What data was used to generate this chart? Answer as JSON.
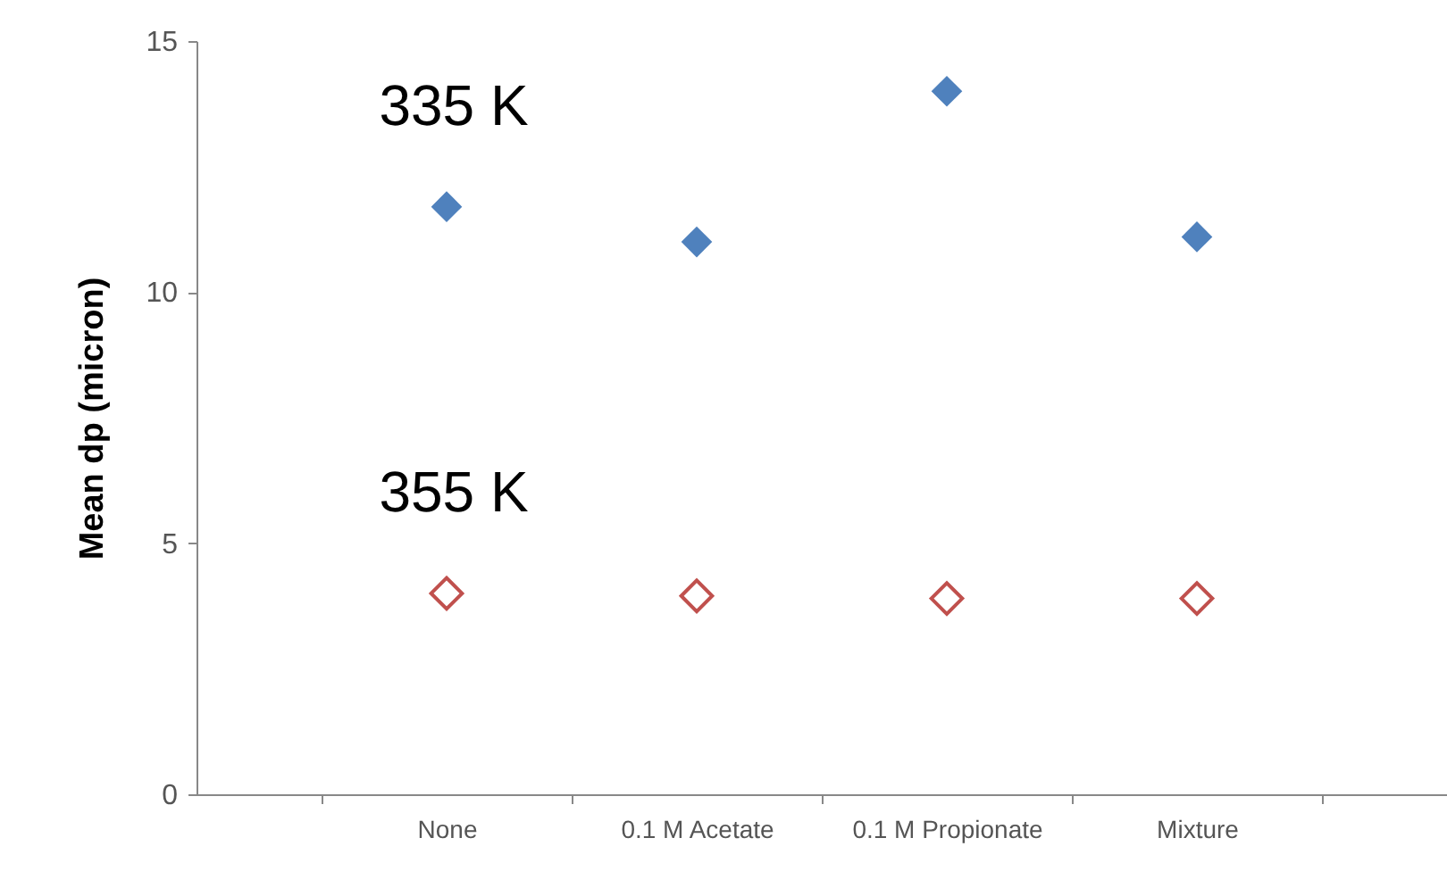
{
  "chart_data": {
    "type": "scatter",
    "ylabel": "Mean dp (micron)",
    "categories": [
      "None",
      "0.1 M Acetate",
      "0.1 M Propionate",
      "Mixture"
    ],
    "series": [
      {
        "name": "335 K",
        "color": "#4f81bd",
        "values": [
          11.7,
          11.0,
          14.0,
          11.1
        ]
      },
      {
        "name": "355 K",
        "color": "#c0504d",
        "values": [
          4.0,
          3.95,
          3.9,
          3.9
        ]
      }
    ],
    "ylim": [
      0,
      15
    ],
    "yticks": [
      0,
      5,
      10,
      15
    ],
    "grid": false,
    "marker": "diamond"
  }
}
